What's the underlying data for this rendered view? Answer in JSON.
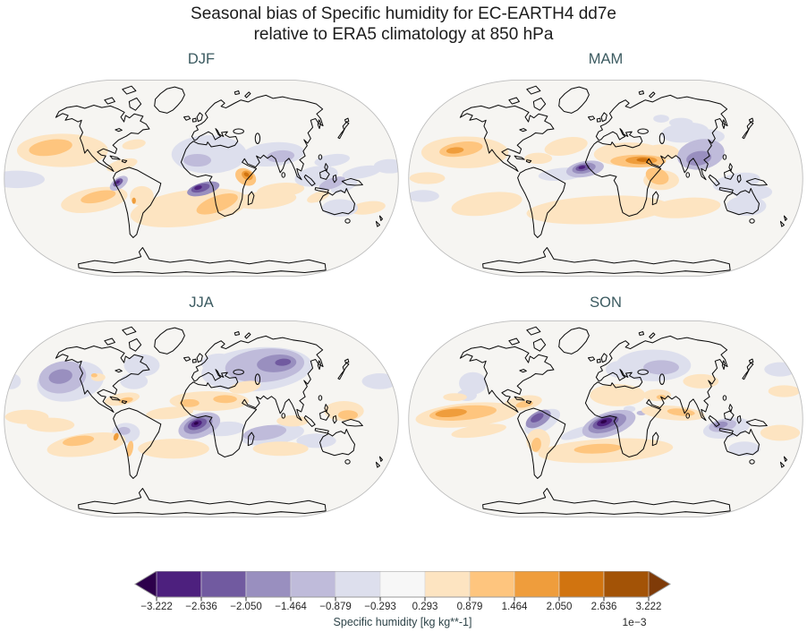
{
  "figure": {
    "title_line1": "Seasonal bias of Specific humidity for EC-EARTH4 dd7e",
    "title_line2": "relative to ERA5 climatology at 850 hPa"
  },
  "panels": [
    {
      "id": "djf",
      "label": "DJF"
    },
    {
      "id": "mam",
      "label": "MAM"
    },
    {
      "id": "jja",
      "label": "JJA"
    },
    {
      "id": "son",
      "label": "SON"
    }
  ],
  "colorbar": {
    "label": "Specific humidity [kg kg**-1]",
    "multiplier": "1e−3",
    "tick_labels": [
      "−3.222",
      "−2.636",
      "−2.050",
      "−1.464",
      "−0.879",
      "−0.293",
      "0.293",
      "0.879",
      "1.464",
      "2.050",
      "2.636",
      "3.222"
    ],
    "segment_colors": [
      "#4d207e",
      "#715aa0",
      "#998fbf",
      "#bfbbda",
      "#dddfed",
      "#f7f7f7",
      "#fde4c1",
      "#fec57e",
      "#ef9d3c",
      "#d17410",
      "#a35306"
    ],
    "extend_left_color": "#2d004b",
    "extend_right_color": "#7f3b08",
    "tick_color": "#333333",
    "outline_color": "#999999"
  },
  "chart_data": {
    "type": "heatmap",
    "title": "Seasonal bias of Specific humidity for EC-EARTH4 dd7e relative to ERA5 climatology at 850 hPa",
    "variable": "Specific humidity bias",
    "units": "kg kg**-1",
    "scale_factor": "1e-3",
    "projection": "Robinson",
    "panels": [
      "DJF",
      "MAM",
      "JJA",
      "SON"
    ],
    "levels": [
      -3.222,
      -2.636,
      -2.05,
      -1.464,
      -0.879,
      -0.293,
      0.293,
      0.879,
      1.464,
      2.05,
      2.636,
      3.222
    ],
    "colormap": "PuOr_r discrete, extended both ends (purple = dry bias, orange = wet bias)",
    "legend_position": "bottom",
    "notable_features": {
      "DJF": "Moderate dry (purple) bias over North Africa, strong dry spot over Congo/Angola and Peru coast; strong wet (orange) spot over Horn of Africa/Arabian Sea; light wet bands over NE Pacific, South Atlantic and southern subtropical oceans; light dry band over South Asia and west Pacific.",
      "MAM": "Strong wet band over the Sahel and NE Pacific; strong dry blob in the equatorial Atlantic off West Africa; dry bias over India/South Asia; light dry over Indonesia/Australia; light wet band across the southern subtropics.",
      "JJA": "Broad dry bias over central Asia/Siberia, Europe and western North America; intense dry blob in the Gulf of Guinea; wet band along the Sahara flank, Caribbean and tropical/subtropical oceans; light dry patches in the south Indian Ocean.",
      "SON": "Intense tilted dry blob in the equatorial Atlantic off the Gulf of Guinea; dry spot on the Peru coast and near Indonesia/NW Australia; light dry over Eurasia; wet bands across the central Pacific, Caribbean and the southern subtropical oceans."
    }
  }
}
